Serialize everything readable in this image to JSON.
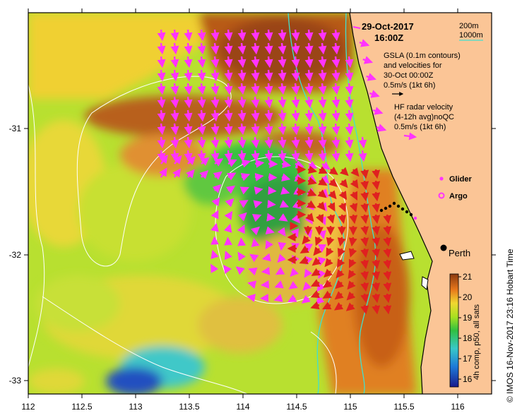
{
  "date_line1": "29-Oct-2017",
  "date_line2": "16:00Z",
  "depth_legend": {
    "d200": "200m",
    "d1000": "1000m",
    "line_color": "#40e0d0"
  },
  "gsla_legend": {
    "line1": "GSLA (0.1m contours)",
    "line2": "and velocities for",
    "line3": "30-Oct 00:00Z",
    "scale": "0.5m/s (1kt 6h)"
  },
  "hf_legend": {
    "line1": "HF radar velocity",
    "line2": "(4-12h avg)noQC",
    "scale": "0.5m/s (1kt 6h)"
  },
  "markers": {
    "glider": "Glider",
    "argo": "Argo"
  },
  "city": "Perth",
  "colorbar": {
    "title": "4h comp, p50, all sats",
    "ticks": [
      "21",
      "20",
      "19",
      "18",
      "17",
      "16"
    ]
  },
  "credit": "© IMOS 16-Nov-2017 23:16 Hobart Time",
  "x_ticks": [
    "112",
    "112.5",
    "113",
    "113.5",
    "114",
    "114.5",
    "115",
    "115.5",
    "116"
  ],
  "y_ticks": [
    "-31",
    "-32",
    "-33"
  ],
  "colors": {
    "velocity_arrow": "#ff33ff",
    "hf_arrow": "#e02020",
    "land": "#fbc596",
    "glider": "#ff33ff"
  }
}
